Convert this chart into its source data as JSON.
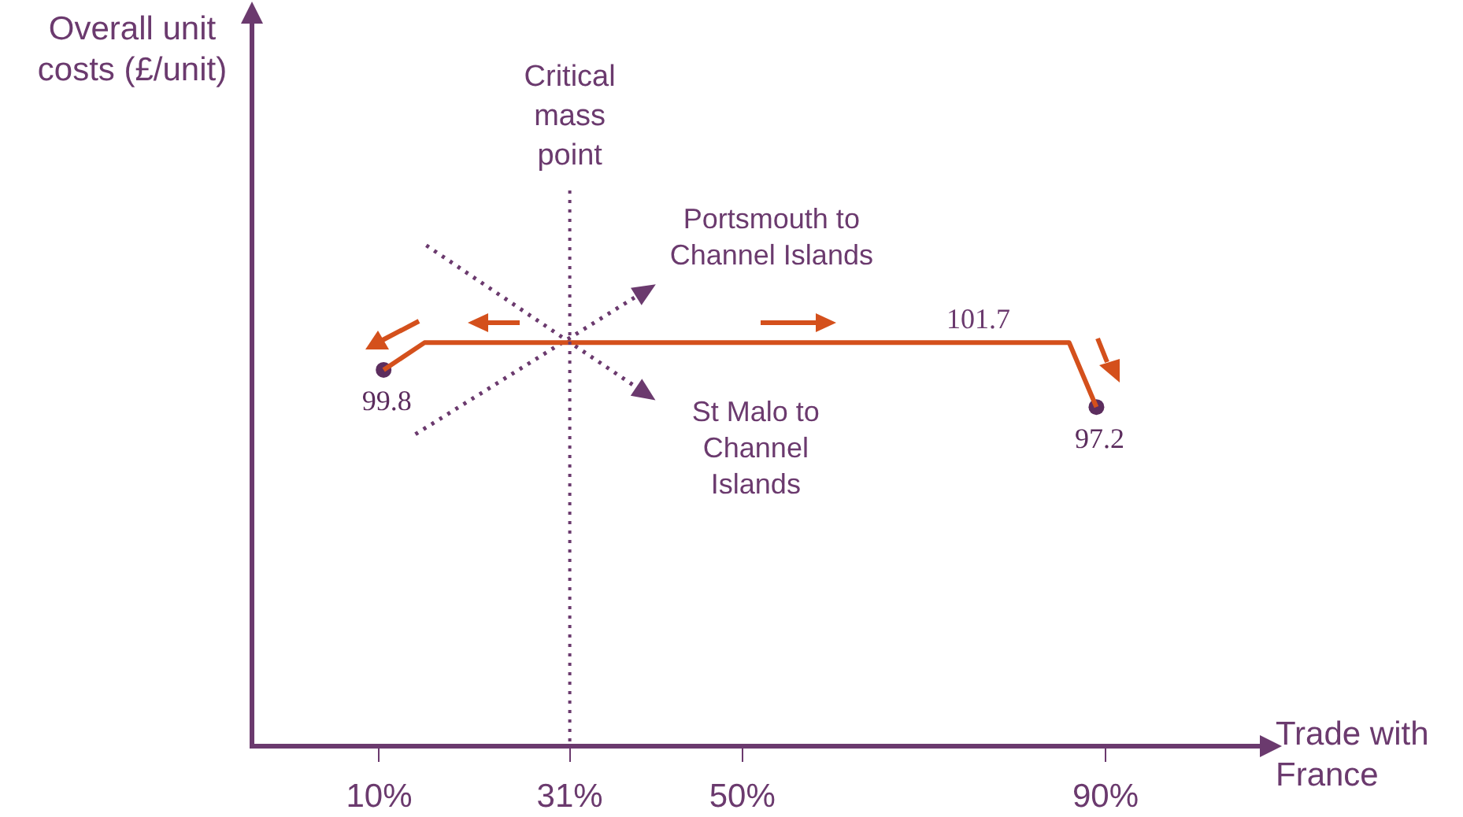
{
  "chart_data": {
    "type": "line",
    "xlabel": "Trade with France",
    "ylabel": "Overall unit costs (£/unit)",
    "xlim": [
      -4,
      107
    ],
    "ylim": [
      73.5,
      124
    ],
    "xticks": [
      {
        "value": 10,
        "label": "10%"
      },
      {
        "value": 31,
        "label": "31%"
      },
      {
        "value": 50,
        "label": "50%"
      },
      {
        "value": 90,
        "label": "90%"
      }
    ],
    "tick_labels": "x",
    "grid": false,
    "legend": false,
    "series": [
      {
        "type": "line",
        "color": "#d4501c",
        "x": [
          10.5,
          15,
          86,
          89
        ],
        "values": [
          99.8,
          101.7,
          101.7,
          97.2
        ],
        "marker": "none",
        "line_style": "solid"
      },
      {
        "type": "scatter",
        "color": "#5c2d5e",
        "x": [
          10.5,
          89
        ],
        "values": [
          99.8,
          97.2
        ],
        "marker": "circle",
        "value_labels": [
          "99.8",
          "97.2"
        ]
      },
      {
        "type": "line",
        "name": "Portsmouth to Channel Islands",
        "color": "#6b3a6e",
        "x": [
          14,
          39
        ],
        "values": [
          95.3,
          105.2
        ],
        "line_style": "dotted"
      },
      {
        "type": "line",
        "name": "St Malo to Channel Islands",
        "color": "#6b3a6e",
        "x": [
          15.2,
          39
        ],
        "values": [
          108.5,
          98.3
        ],
        "line_style": "dotted"
      }
    ],
    "ref_lines": [
      {
        "axis": "x",
        "value": 31,
        "label": "Critical mass point",
        "color": "#6b3a6e",
        "line_style": "dotted"
      }
    ],
    "annotations": [
      {
        "text": "101.7",
        "x": 76,
        "y": 101.7
      }
    ]
  }
}
